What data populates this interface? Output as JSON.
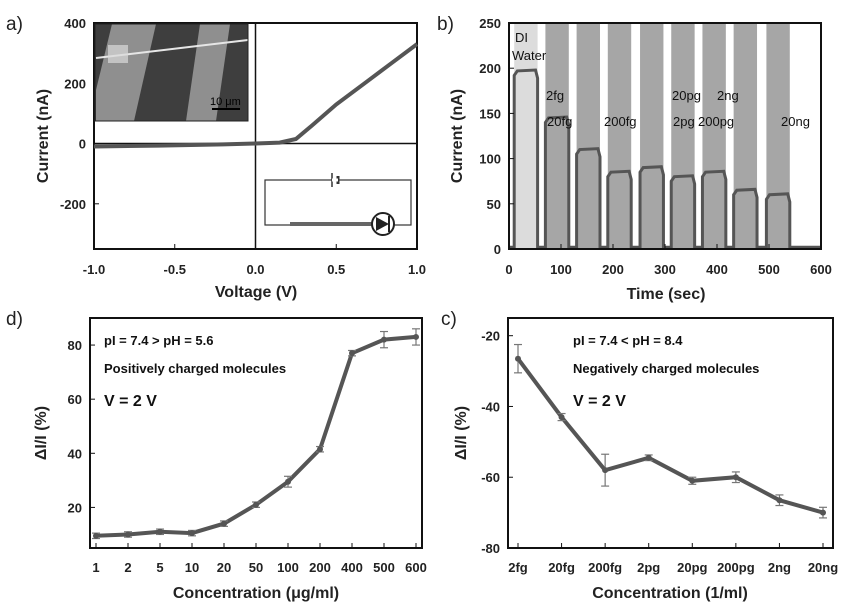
{
  "chart_data": [
    {
      "panel": "a)",
      "type": "line",
      "xlabel": "Voltage (V)",
      "ylabel": "Current (nA)",
      "xlim": [
        -1.0,
        1.0
      ],
      "ylim": [
        -350,
        400
      ],
      "x_ticks": [
        "-1.0",
        "-0.5",
        "0.0",
        "0.5",
        "1.0"
      ],
      "y_ticks": [
        "400",
        "200",
        "0",
        "-200"
      ],
      "series": [
        {
          "x": [
            -1.0,
            -0.6,
            -0.2,
            0.0,
            0.15,
            0.25,
            0.35,
            0.5,
            0.7,
            0.85,
            1.0
          ],
          "y": [
            -10,
            -7,
            -3,
            0,
            3,
            15,
            60,
            130,
            210,
            270,
            330
          ]
        }
      ],
      "inset_scale_label": "10 μm",
      "color": "#555555"
    },
    {
      "panel": "b)",
      "type": "line",
      "xlabel": "Time (sec)",
      "ylabel": "Current (nA)",
      "xlim": [
        0,
        600
      ],
      "ylim": [
        0,
        250
      ],
      "x_ticks": [
        "0",
        "100",
        "200",
        "300",
        "400",
        "500",
        "600"
      ],
      "y_ticks": [
        "250",
        "200",
        "150",
        "100",
        "50",
        "0"
      ],
      "pulses": [
        {
          "label": "DI Water",
          "start": 10,
          "end": 55,
          "level": 197,
          "fill": "#dcdcdc"
        },
        {
          "label": "2fg",
          "start": 70,
          "end": 115,
          "level": 145,
          "fill": "#a6a6a6"
        },
        {
          "label": "20fg",
          "start": 130,
          "end": 175,
          "level": 110,
          "fill": "#a6a6a6"
        },
        {
          "label": "200fg",
          "start": 190,
          "end": 235,
          "level": 85,
          "fill": "#a6a6a6"
        },
        {
          "label": "2pg",
          "start": 252,
          "end": 297,
          "level": 90,
          "fill": "#a6a6a6"
        },
        {
          "label": "20pg",
          "start": 312,
          "end": 357,
          "level": 80,
          "fill": "#a6a6a6"
        },
        {
          "label": "200pg",
          "start": 372,
          "end": 417,
          "level": 85,
          "fill": "#a6a6a6"
        },
        {
          "label": "2ng",
          "start": 432,
          "end": 477,
          "level": 65,
          "fill": "#a6a6a6"
        },
        {
          "label": "20ng",
          "start": 495,
          "end": 540,
          "level": 60,
          "fill": "#a6a6a6"
        }
      ],
      "color": "#555555"
    },
    {
      "panel": "d)",
      "type": "line",
      "xlabel": "Concentration (μg/ml)",
      "ylabel": "ΔI/I (%)",
      "ylim": [
        5,
        90
      ],
      "categories": [
        "1",
        "2",
        "5",
        "10",
        "20",
        "50",
        "100",
        "200",
        "400",
        "500",
        "600"
      ],
      "y_ticks": [
        "80",
        "60",
        "40",
        "20"
      ],
      "values": [
        9.5,
        10,
        11,
        10.5,
        14,
        21,
        29.5,
        41.5,
        77,
        82,
        83
      ],
      "errors": [
        1,
        1,
        1,
        1,
        1,
        1,
        2,
        1,
        1,
        3,
        3
      ],
      "annotations": [
        "pI = 7.4 > pH = 5.6",
        "Positively charged molecules",
        "V = 2 V"
      ],
      "color": "#555555"
    },
    {
      "panel": "c)",
      "type": "line",
      "xlabel": "Concentration (1/ml)",
      "ylabel": "ΔI/I (%)",
      "ylim": [
        -80,
        -15
      ],
      "categories": [
        "2fg",
        "20fg",
        "200fg",
        "2pg",
        "20pg",
        "200pg",
        "2ng",
        "20ng"
      ],
      "y_ticks": [
        "-20",
        "-40",
        "-60",
        "-80"
      ],
      "values": [
        -26.5,
        -43,
        -58,
        -54.5,
        -61,
        -60,
        -66.5,
        -70
      ],
      "errors": [
        4,
        1,
        4.5,
        0.8,
        1,
        1.5,
        1.5,
        1.5
      ],
      "annotations": [
        "pI = 7.4 < pH = 8.4",
        "Negatively charged molecules",
        "V = 2 V"
      ],
      "color": "#555555"
    }
  ]
}
